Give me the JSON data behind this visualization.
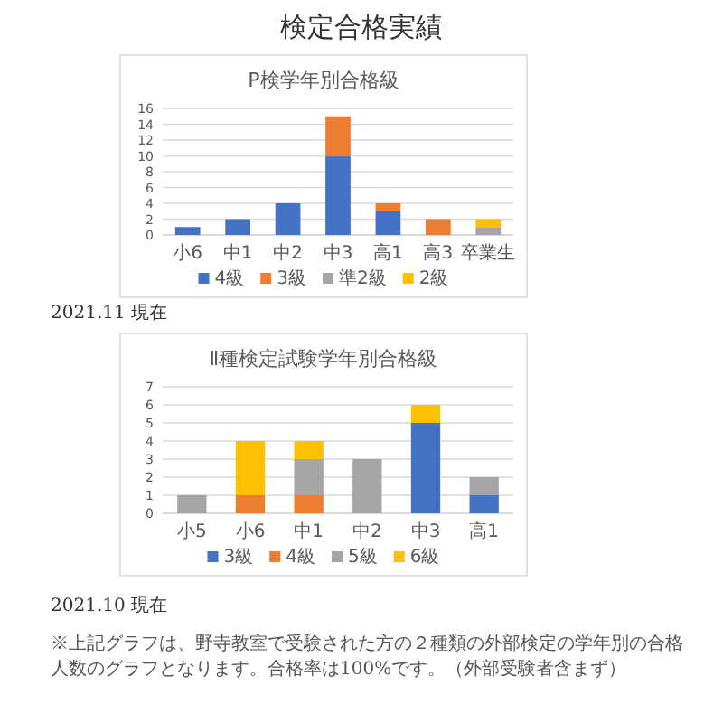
{
  "chart_data": [
    {
      "type": "bar",
      "title": "P検学年別合格級",
      "categories": [
        "小6",
        "中1",
        "中2",
        "中3",
        "高1",
        "高3",
        "卒業生"
      ],
      "stacked": true,
      "series": [
        {
          "name": "4級",
          "color": "#4472c4",
          "values": [
            1,
            2,
            4,
            10,
            3,
            0,
            0
          ]
        },
        {
          "name": "3級",
          "color": "#ed7d31",
          "values": [
            0,
            0,
            0,
            5,
            1,
            2,
            0
          ]
        },
        {
          "name": "準2級",
          "color": "#a5a5a5",
          "values": [
            0,
            0,
            0,
            0,
            0,
            0,
            1
          ]
        },
        {
          "name": "2級",
          "color": "#ffc000",
          "values": [
            0,
            0,
            0,
            0,
            0,
            0,
            1
          ]
        }
      ],
      "ylim": [
        0,
        16
      ],
      "yticks": [
        0,
        2,
        4,
        6,
        8,
        10,
        12,
        14,
        16
      ],
      "grid": "y",
      "legend": "bottom",
      "annotations": [
        "検定合格実績",
        "2021.11 現在"
      ]
    },
    {
      "type": "bar",
      "title": "Ⅱ種検定試験学年別合格級",
      "categories": [
        "小5",
        "小6",
        "中1",
        "中2",
        "中3",
        "高1"
      ],
      "stacked": true,
      "series": [
        {
          "name": "3級",
          "color": "#4472c4",
          "values": [
            0,
            0,
            0,
            0,
            5,
            1
          ]
        },
        {
          "name": "4級",
          "color": "#ed7d31",
          "values": [
            0,
            1,
            1,
            0,
            0,
            0
          ]
        },
        {
          "name": "5級",
          "color": "#a5a5a5",
          "values": [
            1,
            0,
            2,
            3,
            0,
            1
          ]
        },
        {
          "name": "6級",
          "color": "#ffc000",
          "values": [
            0,
            3,
            1,
            0,
            1,
            0
          ]
        }
      ],
      "ylim": [
        0,
        7
      ],
      "yticks": [
        0,
        1,
        2,
        3,
        4,
        5,
        6,
        7
      ],
      "grid": "y",
      "legend": "bottom",
      "annotations": [
        "2021.10 現在",
        "※上記グラフは、野寺教室で受験された方の２種類の外部検定の学年別の合格人数のグラフとなります。合格率は100%です。（外部受験者含まず）"
      ]
    }
  ]
}
